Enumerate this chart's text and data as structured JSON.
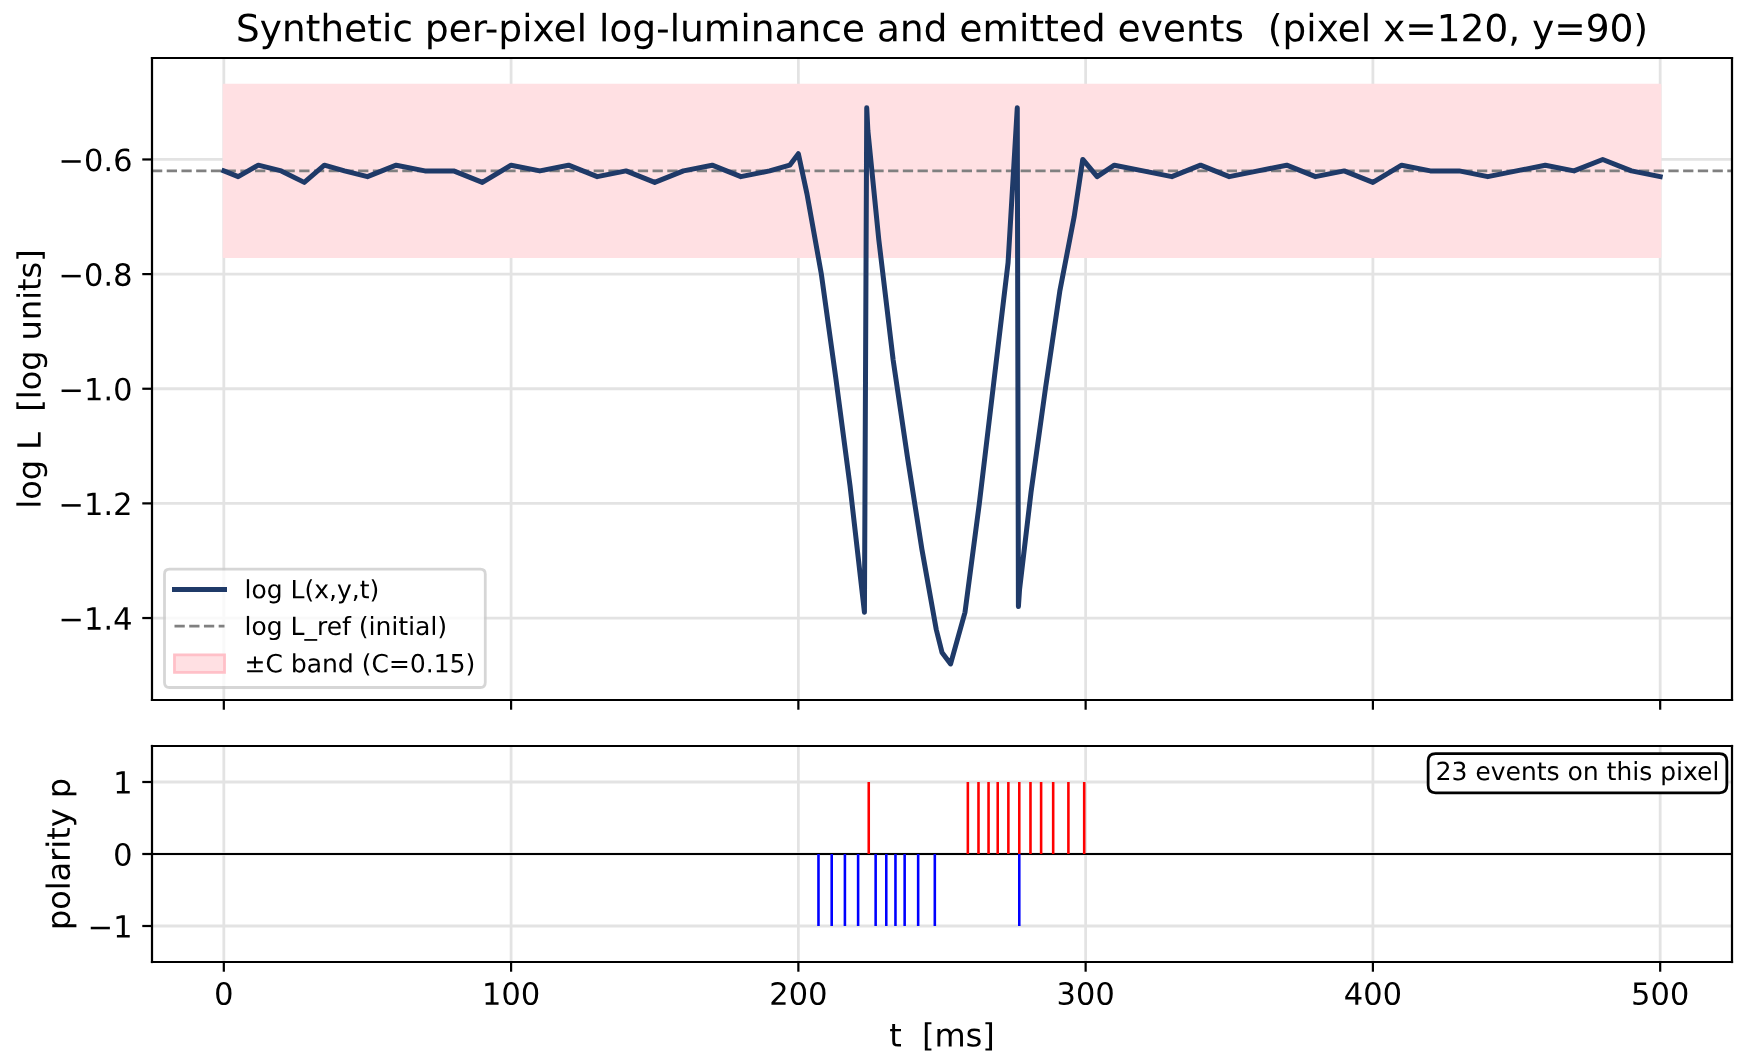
{
  "chart_data": [
    {
      "type": "line",
      "title": "Synthetic per-pixel log-luminance and emitted events  (pixel x=120, y=90)",
      "ylabel": "log L  [log units]",
      "x": [
        0,
        5,
        12,
        20,
        28,
        35,
        42,
        50,
        60,
        70,
        80,
        90,
        100,
        110,
        120,
        130,
        140,
        150,
        160,
        170,
        180,
        190,
        197,
        200,
        203,
        208,
        213,
        218,
        223,
        223.8,
        224.2,
        228,
        233,
        238,
        243,
        248,
        250,
        253,
        258,
        263,
        268,
        273,
        276.2,
        276.6,
        277,
        281,
        286,
        291,
        296,
        299,
        304,
        310,
        320,
        330,
        340,
        350,
        360,
        370,
        380,
        390,
        400,
        410,
        420,
        430,
        440,
        450,
        460,
        470,
        480,
        490,
        500
      ],
      "series": [
        {
          "name": "log L(x,y,t)",
          "color": "#1f3a68",
          "values": [
            -0.62,
            -0.63,
            -0.61,
            -0.62,
            -0.64,
            -0.61,
            -0.62,
            -0.63,
            -0.61,
            -0.62,
            -0.62,
            -0.64,
            -0.61,
            -0.62,
            -0.61,
            -0.63,
            -0.62,
            -0.64,
            -0.62,
            -0.61,
            -0.63,
            -0.62,
            -0.61,
            -0.59,
            -0.66,
            -0.8,
            -0.98,
            -1.17,
            -1.39,
            -0.51,
            -0.55,
            -0.74,
            -0.95,
            -1.12,
            -1.28,
            -1.42,
            -1.46,
            -1.48,
            -1.39,
            -1.2,
            -0.99,
            -0.78,
            -0.51,
            -1.38,
            -1.35,
            -1.18,
            -1.0,
            -0.83,
            -0.7,
            -0.6,
            -0.63,
            -0.61,
            -0.62,
            -0.63,
            -0.61,
            -0.63,
            -0.62,
            -0.61,
            -0.63,
            -0.62,
            -0.64,
            -0.61,
            -0.62,
            -0.62,
            -0.63,
            -0.62,
            -0.61,
            -0.62,
            -0.6,
            -0.62,
            -0.63
          ]
        }
      ],
      "ref_lines": [
        {
          "axis": "y",
          "value": -0.62,
          "label": "log L_ref (initial)",
          "color": "#808080",
          "line_style": "dashed"
        }
      ],
      "bands": [
        {
          "axis": "y",
          "from": -0.77,
          "to": -0.47,
          "label": "±C band (C=0.15)",
          "color": "#ffe0e3"
        }
      ],
      "xlim": [
        -25,
        525
      ],
      "xticks": [
        0,
        100,
        200,
        300,
        400,
        500
      ],
      "ylim": [
        -1.543,
        -0.423
      ],
      "yticks": [
        {
          "value": -1.4,
          "label": "−1.4"
        },
        {
          "value": -1.2,
          "label": "−1.2"
        },
        {
          "value": -1.0,
          "label": "−1.0"
        },
        {
          "value": -0.8,
          "label": "−0.8"
        },
        {
          "value": -0.6,
          "label": "−0.6"
        }
      ],
      "tick_labels": "y",
      "grid": true,
      "legend": "bottom left",
      "line_style": "solid",
      "marker": "none"
    },
    {
      "type": "bar",
      "xlabel": "t  [ms]",
      "ylabel": "polarity p",
      "series": [
        {
          "color": "#ff0000",
          "x": [
            224.5,
            259,
            262.7,
            266.2,
            269.4,
            273.1,
            276.9,
            280.8,
            284.5,
            288.7,
            294,
            299.5
          ],
          "values": [
            1,
            1,
            1,
            1,
            1,
            1,
            1,
            1,
            1,
            1,
            1,
            1
          ]
        },
        {
          "color": "#0000ff",
          "x": [
            207,
            211.6,
            216.2,
            220.8,
            226.9,
            230.6,
            233.8,
            237,
            241.7,
            247.5,
            276.9
          ],
          "values": [
            -1,
            -1,
            -1,
            -1,
            -1,
            -1,
            -1,
            -1,
            -1,
            -1,
            -1
          ]
        }
      ],
      "ref_lines": [
        {
          "axis": "y",
          "value": 0,
          "color": "#000000",
          "line_style": "solid"
        }
      ],
      "annotations": [
        "23 events on this pixel"
      ],
      "xlim": [
        -25,
        525
      ],
      "xticks": [
        0,
        100,
        200,
        300,
        400,
        500
      ],
      "ylim": [
        -1.5,
        1.5
      ],
      "yticks": [
        {
          "value": -1,
          "label": "−1"
        },
        0,
        1
      ],
      "grid": true
    }
  ]
}
